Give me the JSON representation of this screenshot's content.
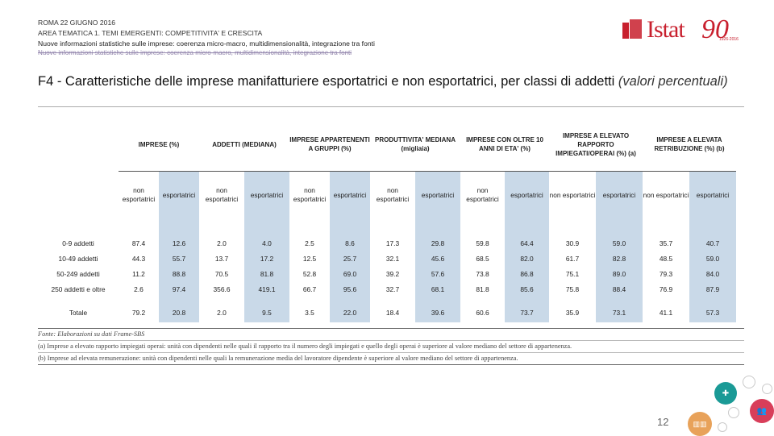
{
  "header": {
    "line1": "ROMA 22 GIUGNO 2016",
    "line2": "AREA TEMATICA 1. TEMI EMERGENTI: COMPETITIVITA' E CRESCITA",
    "line3": "Nuove informazioni statistiche sulle imprese: coerenza micro-macro, multidimensionalità, integrazione tra fonti",
    "line4": "Nuove informazioni statistiche sulle imprese: coerenza micro-macro, multidimensionalità, integrazione tra fonti"
  },
  "logo": {
    "word": "Istat",
    "ninety": "90",
    "years": "1926-2016"
  },
  "title": {
    "main": "F4 - Caratteristiche delle imprese manifatturiere esportatrici e non esportatrici, per classi di addetti ",
    "italic": "(valori percentuali)"
  },
  "table": {
    "groups": [
      "IMPRESE (%)",
      "ADDETTI (MEDIANA)",
      "IMPRESE APPARTENENTI A GRUPPI (%)",
      "PRODUTTIVITA' MEDIANA (migliaia)",
      "IMPRESE CON OLTRE 10 ANNI DI ETA' (%)",
      "IMPRESE A ELEVATO RAPPORTO IMPIEGATI/OPERAI (%) (a)",
      "IMPRESE A ELEVATA RETRIBUZIONE (%) (b)"
    ],
    "sub_non": "non esportatrici",
    "sub_exp": "esportatrici",
    "rows": [
      {
        "label": "0-9 addetti",
        "values": [
          "87.4",
          "12.6",
          "2.0",
          "4.0",
          "2.5",
          "8.6",
          "17.3",
          "29.8",
          "59.8",
          "64.4",
          "30.9",
          "59.0",
          "35.7",
          "40.7"
        ]
      },
      {
        "label": "10-49 addetti",
        "values": [
          "44.3",
          "55.7",
          "13.7",
          "17.2",
          "12.5",
          "25.7",
          "32.1",
          "45.6",
          "68.5",
          "82.0",
          "61.7",
          "82.8",
          "48.5",
          "59.0"
        ]
      },
      {
        "label": "50-249 addetti",
        "values": [
          "11.2",
          "88.8",
          "70.5",
          "81.8",
          "52.8",
          "69.0",
          "39.2",
          "57.6",
          "73.8",
          "86.8",
          "75.1",
          "89.0",
          "79.3",
          "84.0"
        ]
      },
      {
        "label": "250 addetti e oltre",
        "values": [
          "2.6",
          "97.4",
          "356.6",
          "419.1",
          "66.7",
          "95.6",
          "32.7",
          "68.1",
          "81.8",
          "85.6",
          "75.8",
          "88.4",
          "76.9",
          "87.9"
        ]
      }
    ],
    "total": {
      "label": "Totale",
      "values": [
        "79.2",
        "20.8",
        "2.0",
        "9.5",
        "3.5",
        "22.0",
        "18.4",
        "39.6",
        "60.6",
        "73.7",
        "35.9",
        "73.1",
        "41.1",
        "57.3"
      ]
    }
  },
  "footnotes": {
    "source": "Fonte: Elaborazioni su dati Frame-SBS",
    "a": "(a) Imprese a elevato rapporto impiegati operai: unità con dipendenti nelle quali il rapporto tra il numero degli impiegati e quello degli operai è superiore al valore mediano del settore di appartenenza.",
    "b": "(b) Imprese ad elevata remunerazione: unità con dipendenti nelle quali la remunerazione media del lavoratore dipendente è superiore al valore mediano del settore di appartenenza."
  },
  "page_number": "12"
}
